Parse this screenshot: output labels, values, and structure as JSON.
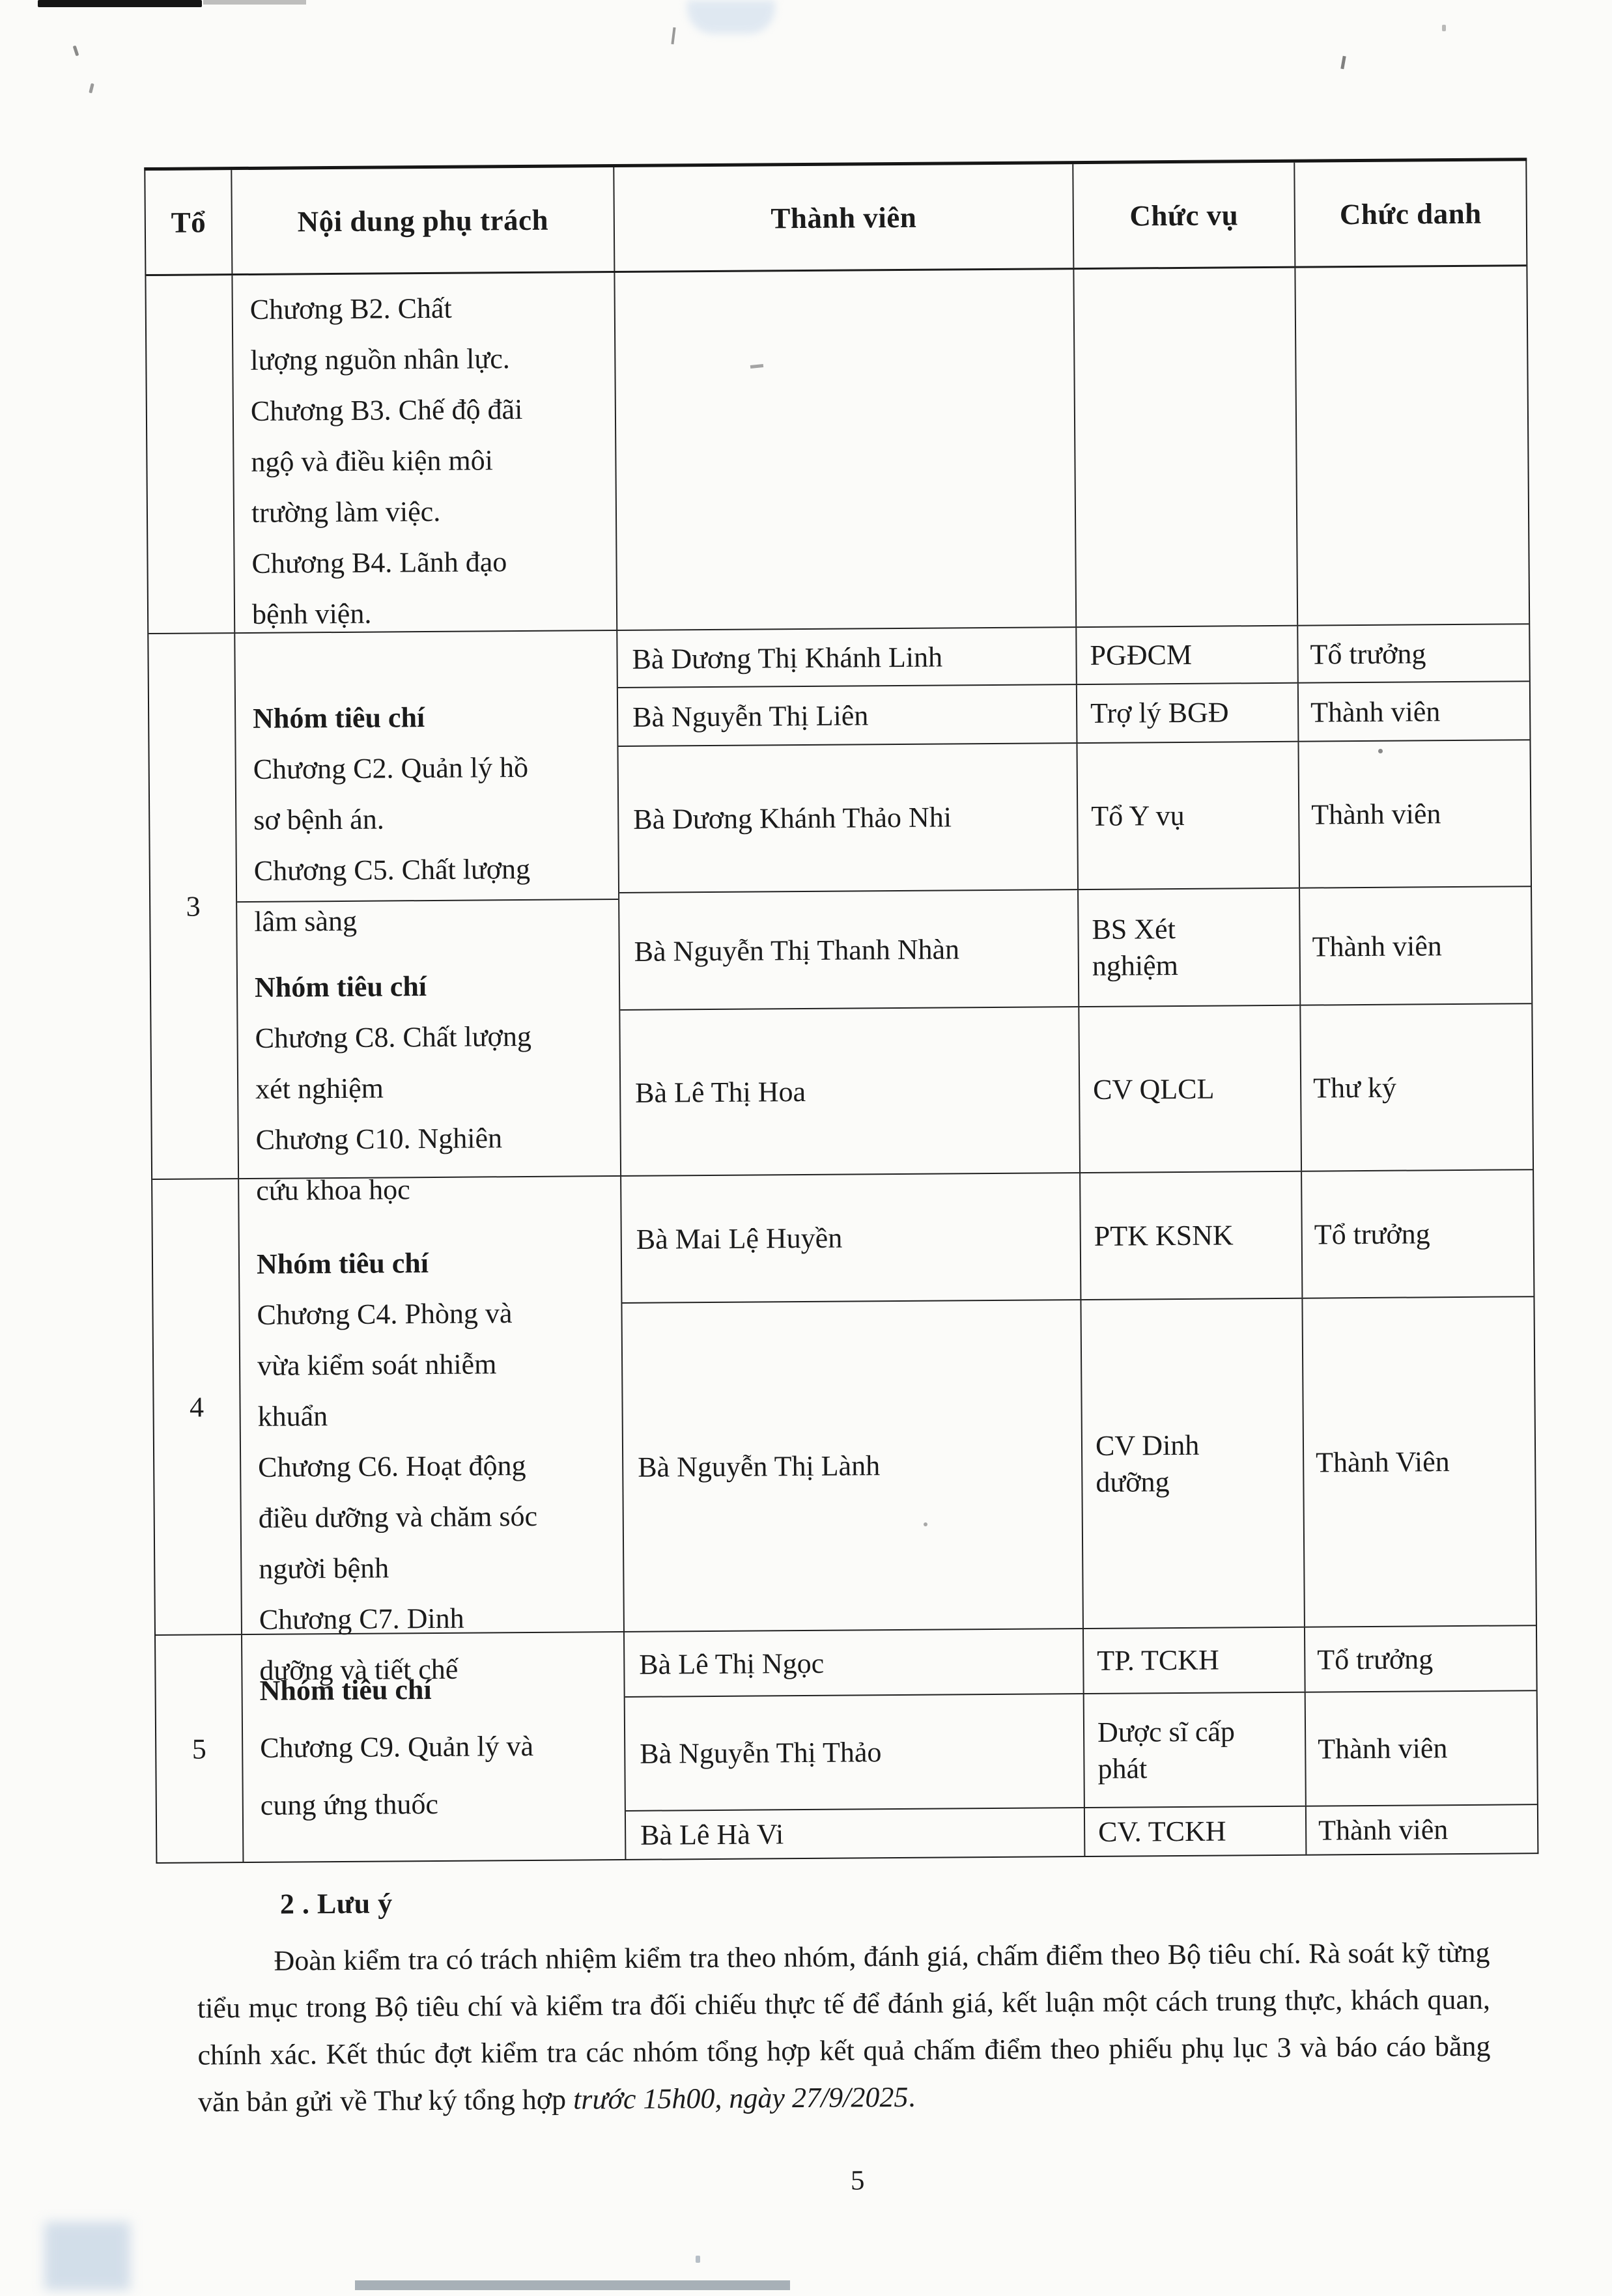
{
  "table": {
    "headers": {
      "to": "Tổ",
      "noi_dung": "Nội dung phụ trách",
      "thanh_vien": "Thành viên",
      "chuc_vu": "Chức vụ",
      "chuc_danh": "Chức danh"
    },
    "rowA": {
      "content": "Chương B2. Chất\nlượng nguồn nhân lực.\nChương B3. Chế độ đãi\nngộ và điều kiện môi\ntrường làm việc.\nChương B4. Lãnh đạo\nbệnh viện."
    },
    "rowB": {
      "to": "3",
      "group1": {
        "title": "Nhóm tiêu chí",
        "body": "Chương C2. Quản lý hồ\nsơ bệnh án.\nChương C5. Chất lượng\nlâm sàng"
      },
      "group2": {
        "title": "Nhóm tiêu chí",
        "body": "Chương C8. Chất lượng\nxét nghiệm\nChương C10. Nghiên\ncứu khoa học"
      },
      "members": {
        "m1": {
          "name": "Bà Dương Thị Khánh Linh",
          "position": "PGĐCM",
          "role": "Tổ trưởng"
        },
        "m2": {
          "name": "Bà Nguyễn Thị Liên",
          "position": "Trợ lý BGĐ",
          "role": "Thành viên"
        },
        "m3": {
          "name": "Bà Dương Khánh Thảo Nhi",
          "position": "Tổ Y vụ",
          "role": "Thành viên"
        },
        "m4": {
          "name": "Bà Nguyễn Thị Thanh Nhàn",
          "position": "BS Xét\nnghiệm",
          "role": "Thành viên"
        },
        "m5": {
          "name": "Bà Lê Thị Hoa",
          "position": "CV QLCL",
          "role": "Thư ký"
        }
      }
    },
    "rowC": {
      "to": "4",
      "group1": {
        "title": "Nhóm tiêu chí",
        "body": "Chương C4. Phòng và\nvừa kiểm soát nhiễm\nkhuẩn\nChương C6. Hoạt động\nđiều dưỡng và chăm sóc\nngười bệnh\nChương C7. Dinh\ndưỡng và tiết chế"
      },
      "members": {
        "m1": {
          "name": "Bà Mai Lệ Huyền",
          "position": "PTK KSNK",
          "role": "Tổ trưởng"
        },
        "m2": {
          "name": "Bà Nguyễn Thị Lành",
          "position": "CV Dinh\ndưỡng",
          "role": "Thành Viên"
        }
      }
    },
    "rowD": {
      "to": "5",
      "group1": {
        "title": "Nhóm tiêu chí",
        "body": "Chương C9. Quản lý và\ncung ứng thuốc"
      },
      "members": {
        "m1": {
          "name": "Bà Lê Thị Ngọc",
          "position": "TP. TCKH",
          "role": "Tổ trưởng"
        },
        "m2": {
          "name": "Bà Nguyễn Thị Thảo",
          "position": "Dược sĩ cấp\nphát",
          "role": "Thành viên"
        },
        "m3": {
          "name": "Bà Lê Hà Vi",
          "position": "CV. TCKH",
          "role": "Thành viên"
        }
      }
    }
  },
  "notes": {
    "heading": "2 . Lưu ý",
    "para_main": "Đoàn kiểm tra có trách nhiệm kiểm tra theo nhóm, đánh giá, chấm điểm theo Bộ tiêu chí. Rà soát kỹ từng tiểu mục trong Bộ tiêu chí và kiểm tra đối chiếu thực tế để đánh giá, kết luận một cách trung thực, khách quan, chính xác. Kết thúc đợt kiểm tra các nhóm tổng hợp kết quả chấm điểm theo phiếu phụ lục 3 và báo cáo bằng văn bản gửi về Thư ký tổng hợp ",
    "para_italic": "trước 15h00, ngày 27/9/2025",
    "para_end": "."
  },
  "page": {
    "number": "5"
  }
}
